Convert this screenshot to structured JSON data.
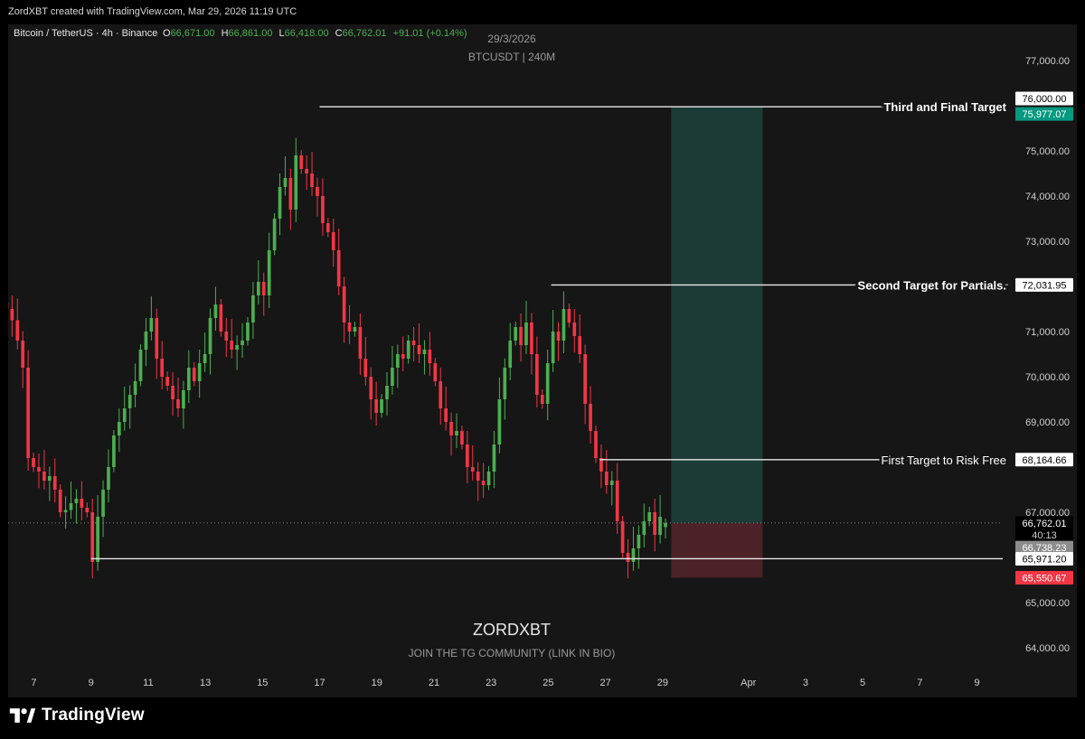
{
  "header": {
    "created_by": "ZordXBT created with TradingView.com, Mar 29, 2026 11:19 UTC"
  },
  "legend": {
    "symbol": "Bitcoin / TetherUS · 4h · Binance",
    "open_label": "O",
    "open": "66,671.00",
    "high_label": "H",
    "high": "66,861.00",
    "low_label": "L",
    "low": "66,418.00",
    "close_label": "C",
    "close": "66,762.01",
    "change": "+91.01 (+0.14%)"
  },
  "overlay": {
    "date": "29/3/2026",
    "ticker_interval": "BTCUSDT | 240M",
    "watermark": "ZORDXBT",
    "watermark_sub": "JOIN THE TG COMMUNITY (LINK IN BIO)"
  },
  "footer": {
    "brand": "TradingView"
  },
  "colors": {
    "up": "#26a69a",
    "down": "#ef5350",
    "bull_candle": "#4caf50",
    "bear_candle": "#f23645",
    "profit_zone": "#1c3b36",
    "loss_zone": "#4a2228",
    "target_label_green": "#089981",
    "stop_label_red": "#f23645"
  },
  "chart_data": {
    "type": "candlestick",
    "ylim": [
      63500,
      77800
    ],
    "y_ticks": [
      "77,000.00",
      "75,000.00",
      "74,000.00",
      "73,000.00",
      "71,000.00",
      "70,000.00",
      "69,000.00",
      "67,000.00",
      "65,000.00",
      "64,000.00"
    ],
    "y_tick_values": [
      77000,
      75000,
      74000,
      73000,
      71000,
      70000,
      69000,
      67000,
      65000,
      64000
    ],
    "x_ticks": [
      {
        "label": "7",
        "day": 7
      },
      {
        "label": "9",
        "day": 9
      },
      {
        "label": "11",
        "day": 11
      },
      {
        "label": "13",
        "day": 13
      },
      {
        "label": "15",
        "day": 15
      },
      {
        "label": "17",
        "day": 17
      },
      {
        "label": "19",
        "day": 19
      },
      {
        "label": "21",
        "day": 21
      },
      {
        "label": "23",
        "day": 23
      },
      {
        "label": "25",
        "day": 25
      },
      {
        "label": "27",
        "day": 27
      },
      {
        "label": "29",
        "day": 29
      },
      {
        "label": "Apr",
        "day": 32
      },
      {
        "label": "3",
        "day": 34
      },
      {
        "label": "5",
        "day": 36
      },
      {
        "label": "7",
        "day": 38
      },
      {
        "label": "9",
        "day": 40
      }
    ],
    "x_range_days": [
      6.1,
      40.9
    ],
    "closes": [
      71500,
      71250,
      70800,
      70200,
      68200,
      68000,
      67900,
      67700,
      67800,
      67500,
      67000,
      67050,
      67200,
      67300,
      67100,
      67000,
      65900,
      66900,
      67500,
      68000,
      68700,
      69000,
      69300,
      69600,
      69900,
      70600,
      71000,
      71300,
      70400,
      70000,
      69800,
      69500,
      69300,
      69700,
      70200,
      69900,
      70300,
      70500,
      71300,
      71600,
      71000,
      70800,
      70600,
      70700,
      70800,
      71200,
      71800,
      72100,
      71800,
      72800,
      73500,
      74200,
      74400,
      73700,
      74900,
      74600,
      74500,
      74200,
      74000,
      73400,
      73200,
      72800,
      72000,
      71200,
      71000,
      71100,
      70400,
      70000,
      69500,
      69200,
      69500,
      69800,
      70200,
      70500,
      70400,
      70800,
      70700,
      70500,
      70600,
      70300,
      69900,
      69300,
      69000,
      68700,
      68800,
      68500,
      68000,
      67900,
      67700,
      67600,
      67900,
      68500,
      69500,
      70200,
      70800,
      71100,
      70700,
      71200,
      70500,
      69600,
      69400,
      70300,
      71000,
      70800,
      71500,
      71200,
      70900,
      70500,
      69400,
      68800,
      68200,
      67900,
      67600,
      67700,
      66800,
      66100,
      65900,
      66200,
      66500,
      66800,
      67000,
      66500,
      66900,
      66762
    ],
    "last_candle_high": 66861,
    "last_candle_low": 66418,
    "last_candle_open": 66671,
    "last_candle_close": 66762.01,
    "levels": [
      {
        "name": "Third and Final Target",
        "value": 75977.07,
        "label": "75,977.07",
        "text": "Third and Final Target",
        "bold": true
      },
      {
        "name": "Second Target for Partials.",
        "value": 72031.95,
        "label": "72,031.95",
        "text": "Second Target for Partials.",
        "bold": true
      },
      {
        "name": "First Target to Risk Free",
        "value": 68164.66,
        "label": "68,164.66",
        "text": "First Target to Risk Free",
        "bold": false
      },
      {
        "name": "Support",
        "value": 65971.2,
        "label": "65,971.20",
        "text": "",
        "bold": false
      }
    ],
    "price_tags": [
      {
        "label": "76,000.00",
        "value": 76000,
        "style": "white"
      },
      {
        "label": "75,977.07",
        "value": 75977.07,
        "style": "green"
      },
      {
        "label": "72,031.95",
        "value": 72031.95,
        "style": "white"
      },
      {
        "label": "68,164.66",
        "value": 68164.66,
        "style": "white"
      },
      {
        "label": "66,762.01",
        "value": 66762.01,
        "style": "current"
      },
      {
        "label": "40:13",
        "value": 66762.01,
        "style": "countdown"
      },
      {
        "label": "66,738.23",
        "value": 66738.23,
        "style": "grey"
      },
      {
        "label": "65,971.20",
        "value": 65971.2,
        "style": "white"
      },
      {
        "label": "65,550.67",
        "value": 65550.67,
        "style": "red"
      }
    ],
    "position": {
      "type": "long",
      "entry": 66762.01,
      "target": 75977.07,
      "stop": 65550.67,
      "start_day": 29.3,
      "end_day": 32.5
    }
  }
}
